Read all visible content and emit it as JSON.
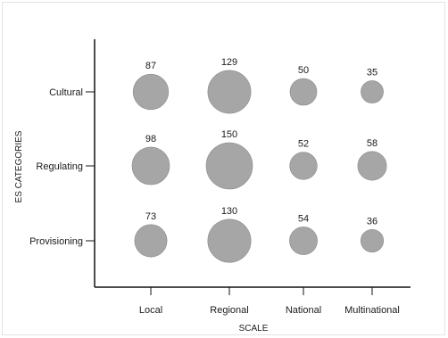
{
  "chart_data": {
    "type": "scatter",
    "xlabel": "SCALE",
    "ylabel": "ES CATEGORIES",
    "x_categories": [
      "Local",
      "Regional",
      "National",
      "Multinational"
    ],
    "y_categories": [
      "Provisioning",
      "Regulating",
      "Cultural"
    ],
    "grid": false,
    "bubble_color": "#a6a6a6",
    "bubble_stroke": "#8a8a8a",
    "points": [
      {
        "x": "Local",
        "y": "Cultural",
        "value": 87
      },
      {
        "x": "Regional",
        "y": "Cultural",
        "value": 129
      },
      {
        "x": "National",
        "y": "Cultural",
        "value": 50
      },
      {
        "x": "Multinational",
        "y": "Cultural",
        "value": 35
      },
      {
        "x": "Local",
        "y": "Regulating",
        "value": 98
      },
      {
        "x": "Regional",
        "y": "Regulating",
        "value": 150
      },
      {
        "x": "National",
        "y": "Regulating",
        "value": 52
      },
      {
        "x": "Multinational",
        "y": "Regulating",
        "value": 58
      },
      {
        "x": "Local",
        "y": "Provisioning",
        "value": 73
      },
      {
        "x": "Regional",
        "y": "Provisioning",
        "value": 130
      },
      {
        "x": "National",
        "y": "Provisioning",
        "value": 54
      },
      {
        "x": "Multinational",
        "y": "Provisioning",
        "value": 36
      }
    ]
  }
}
